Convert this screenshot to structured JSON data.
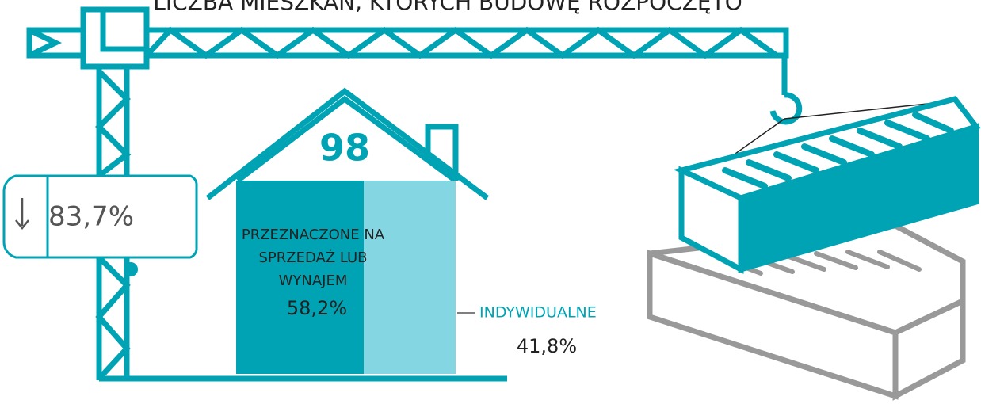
{
  "chart_data": {
    "type": "stacked_bar",
    "title": "LICZBA MIESZKAŃ, KTÓRYCH BUDOWĘ ROZPOCZĘTO",
    "total": 98,
    "change": {
      "value": 83.7,
      "label": "83,7%"
    },
    "xlim": [
      0,
      100
    ],
    "series": [
      {
        "name": "PRZEZNACZONE NA SPRZEDAŻ LUB WYNAJEM",
        "color": "#00a3b4",
        "values": [
          58.2
        ],
        "value_labels": [
          "58,2%"
        ]
      },
      {
        "name": "INDYWIDUALNE",
        "color": "#84d6e2",
        "values": [
          41.8
        ],
        "value_labels": [
          "41,8%"
        ]
      }
    ]
  }
}
